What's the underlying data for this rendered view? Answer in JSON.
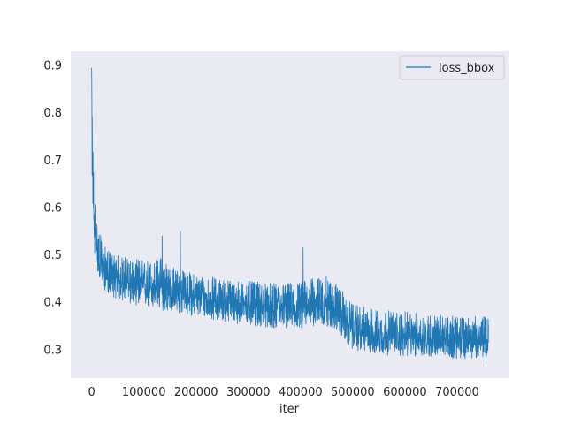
{
  "chart_data": {
    "type": "line",
    "xlabel": "iter",
    "ylabel": "",
    "xlim": [
      -40000,
      800000
    ],
    "ylim": [
      0.24,
      0.93
    ],
    "x_ticks": [
      0,
      100000,
      200000,
      300000,
      400000,
      500000,
      600000,
      700000
    ],
    "x_tick_labels": [
      "0",
      "100000",
      "200000",
      "300000",
      "400000",
      "500000",
      "600000",
      "700000"
    ],
    "y_ticks": [
      0.3,
      0.4,
      0.5,
      0.6,
      0.7,
      0.8,
      0.9
    ],
    "y_tick_labels": [
      "0.3",
      "0.4",
      "0.5",
      "0.6",
      "0.7",
      "0.8",
      "0.9"
    ],
    "grid": false,
    "legend_position": "top-right",
    "colors": {
      "plot_background": "#eaeaf2",
      "line": "#1f77b4",
      "legend_border": "#cccccc"
    },
    "series": [
      {
        "name": "loss_bbox",
        "center": {
          "x": [
            0,
            2000,
            5000,
            10000,
            15000,
            20000,
            30000,
            50000,
            80000,
            100000,
            120000,
            140000,
            150000,
            170000,
            200000,
            250000,
            300000,
            350000,
            400000,
            420000,
            450000,
            470000,
            490000,
            500000,
            550000,
            600000,
            650000,
            700000,
            760000
          ],
          "y": [
            0.78,
            0.67,
            0.56,
            0.51,
            0.485,
            0.475,
            0.46,
            0.445,
            0.438,
            0.432,
            0.43,
            0.428,
            0.425,
            0.42,
            0.41,
            0.4,
            0.395,
            0.39,
            0.39,
            0.392,
            0.395,
            0.385,
            0.355,
            0.34,
            0.33,
            0.325,
            0.322,
            0.32,
            0.32
          ]
        },
        "upper": {
          "x": [
            0,
            2000,
            5000,
            10000,
            15000,
            20000,
            30000,
            50000,
            80000,
            100000,
            120000,
            140000,
            150000,
            170000,
            200000,
            250000,
            300000,
            350000,
            400000,
            420000,
            450000,
            470000,
            490000,
            500000,
            550000,
            600000,
            650000,
            700000,
            760000
          ],
          "y": [
            0.89,
            0.76,
            0.64,
            0.58,
            0.55,
            0.53,
            0.51,
            0.5,
            0.495,
            0.49,
            0.49,
            0.5,
            0.48,
            0.47,
            0.46,
            0.45,
            0.445,
            0.44,
            0.445,
            0.45,
            0.455,
            0.44,
            0.41,
            0.395,
            0.385,
            0.38,
            0.375,
            0.37,
            0.37
          ]
        },
        "lower": {
          "x": [
            0,
            2000,
            5000,
            10000,
            15000,
            20000,
            30000,
            50000,
            80000,
            100000,
            120000,
            140000,
            150000,
            170000,
            200000,
            250000,
            300000,
            350000,
            400000,
            420000,
            450000,
            470000,
            490000,
            500000,
            550000,
            600000,
            650000,
            700000,
            760000
          ],
          "y": [
            0.7,
            0.6,
            0.5,
            0.47,
            0.45,
            0.43,
            0.42,
            0.405,
            0.395,
            0.39,
            0.385,
            0.38,
            0.38,
            0.375,
            0.37,
            0.36,
            0.35,
            0.345,
            0.345,
            0.35,
            0.35,
            0.34,
            0.31,
            0.3,
            0.29,
            0.285,
            0.285,
            0.28,
            0.285
          ]
        },
        "spikes": [
          {
            "x": 0,
            "y": 0.895
          },
          {
            "x": 135000,
            "y": 0.54
          },
          {
            "x": 170000,
            "y": 0.55
          },
          {
            "x": 405000,
            "y": 0.515
          },
          {
            "x": 755000,
            "y": 0.27
          }
        ]
      }
    ]
  }
}
